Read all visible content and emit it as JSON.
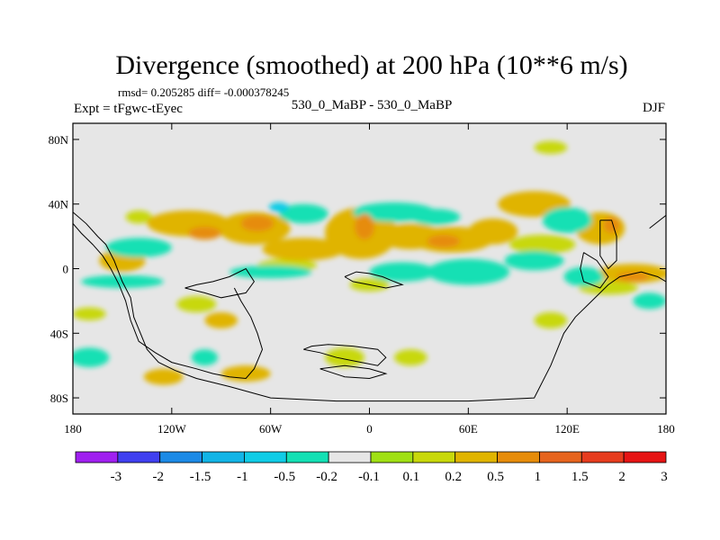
{
  "chart_data": {
    "type": "heatmap",
    "title": "Divergence (smoothed) at 200 hPa (10**6 m/s)",
    "stats": "rmsd= 0.205285 diff= -0.000378245",
    "left_label": "Expt = tFgwc-tEyec",
    "center_label": "530_0_MaBP - 530_0_MaBP",
    "right_label": "DJF",
    "xlim": [
      -180,
      180
    ],
    "ylim": [
      -90,
      90
    ],
    "x_ticks": [
      {
        "value": -180,
        "label": "180"
      },
      {
        "value": -120,
        "label": "120W"
      },
      {
        "value": -60,
        "label": "60W"
      },
      {
        "value": 0,
        "label": "0"
      },
      {
        "value": 60,
        "label": "60E"
      },
      {
        "value": 120,
        "label": "120E"
      },
      {
        "value": 180,
        "label": "180"
      }
    ],
    "y_ticks": [
      {
        "value": 80,
        "label": "80N"
      },
      {
        "value": 40,
        "label": "40N"
      },
      {
        "value": 0,
        "label": "0"
      },
      {
        "value": -40,
        "label": "40S"
      },
      {
        "value": -80,
        "label": "80S"
      }
    ],
    "colorbar": {
      "colors": [
        "#a020f0",
        "#4040f0",
        "#1c8ae6",
        "#12b4e6",
        "#10cce6",
        "#14e0b4",
        "#e6e6e6",
        "#a0e014",
        "#c8d80a",
        "#e0b400",
        "#e68c0a",
        "#e6641e",
        "#e63c1e",
        "#e61414"
      ],
      "labels": [
        "-3",
        "-2",
        "-1.5",
        "-1",
        "-0.5",
        "-0.2",
        "-0.1",
        "0.1",
        "0.2",
        "0.5",
        "1",
        "1.5",
        "2",
        "3"
      ]
    },
    "fields": [
      {
        "lon": -150,
        "lat": 5,
        "rx": 14,
        "ry": 7,
        "value": 0.5
      },
      {
        "lon": -140,
        "lat": 32,
        "rx": 8,
        "ry": 4,
        "value": 0.2
      },
      {
        "lon": -110,
        "lat": 28,
        "rx": 25,
        "ry": 8,
        "value": 0.5
      },
      {
        "lon": -100,
        "lat": 22,
        "rx": 10,
        "ry": 4,
        "value": 1
      },
      {
        "lon": -70,
        "lat": 25,
        "rx": 22,
        "ry": 10,
        "value": 0.5
      },
      {
        "lon": -68,
        "lat": 28,
        "rx": 10,
        "ry": 5,
        "value": 1
      },
      {
        "lon": -40,
        "lat": 12,
        "rx": 25,
        "ry": 7,
        "value": 0.5
      },
      {
        "lon": -50,
        "lat": 2,
        "rx": 18,
        "ry": 4,
        "value": 0.2
      },
      {
        "lon": -5,
        "lat": 22,
        "rx": 22,
        "ry": 16,
        "value": 0.5
      },
      {
        "lon": -3,
        "lat": 26,
        "rx": 6,
        "ry": 8,
        "value": 1
      },
      {
        "lon": 25,
        "lat": 20,
        "rx": 20,
        "ry": 8,
        "value": 0.5
      },
      {
        "lon": 50,
        "lat": 18,
        "rx": 25,
        "ry": 8,
        "value": 0.5
      },
      {
        "lon": 45,
        "lat": 17,
        "rx": 10,
        "ry": 4,
        "value": 1
      },
      {
        "lon": 75,
        "lat": 23,
        "rx": 15,
        "ry": 8,
        "value": 0.5
      },
      {
        "lon": 100,
        "lat": 40,
        "rx": 22,
        "ry": 8,
        "value": 0.5
      },
      {
        "lon": 105,
        "lat": 15,
        "rx": 20,
        "ry": 6,
        "value": 0.2
      },
      {
        "lon": 140,
        "lat": 25,
        "rx": 15,
        "ry": 10,
        "value": 0.5
      },
      {
        "lon": 147,
        "lat": 27,
        "rx": 5,
        "ry": 5,
        "value": 1
      },
      {
        "lon": 160,
        "lat": -3,
        "rx": 22,
        "ry": 6,
        "value": 0.5
      },
      {
        "lon": 160,
        "lat": -5,
        "rx": 10,
        "ry": 3,
        "value": 1
      },
      {
        "lon": 145,
        "lat": -12,
        "rx": 18,
        "ry": 4,
        "value": 0.2
      },
      {
        "lon": 110,
        "lat": -32,
        "rx": 10,
        "ry": 5,
        "value": 0.2
      },
      {
        "lon": -105,
        "lat": -22,
        "rx": 12,
        "ry": 5,
        "value": 0.2
      },
      {
        "lon": -90,
        "lat": -32,
        "rx": 10,
        "ry": 5,
        "value": 0.5
      },
      {
        "lon": -75,
        "lat": -65,
        "rx": 15,
        "ry": 5,
        "value": 0.5
      },
      {
        "lon": -125,
        "lat": -67,
        "rx": 12,
        "ry": 5,
        "value": 0.5
      },
      {
        "lon": -15,
        "lat": -55,
        "rx": 12,
        "ry": 6,
        "value": 0.2
      },
      {
        "lon": 25,
        "lat": -55,
        "rx": 10,
        "ry": 5,
        "value": 0.2
      },
      {
        "lon": -170,
        "lat": -28,
        "rx": 10,
        "ry": 4,
        "value": 0.2
      },
      {
        "lon": 0,
        "lat": -10,
        "rx": 12,
        "ry": 4,
        "value": 0.2
      },
      {
        "lon": 110,
        "lat": 75,
        "rx": 10,
        "ry": 4,
        "value": 0.2
      },
      {
        "lon": -140,
        "lat": 13,
        "rx": 20,
        "ry": 6,
        "value": -0.5
      },
      {
        "lon": -150,
        "lat": -8,
        "rx": 25,
        "ry": 4,
        "value": -0.5
      },
      {
        "lon": -60,
        "lat": -2,
        "rx": 25,
        "ry": 4,
        "value": -0.5
      },
      {
        "lon": -40,
        "lat": 34,
        "rx": 15,
        "ry": 6,
        "value": -0.5
      },
      {
        "lon": -55,
        "lat": 38,
        "rx": 6,
        "ry": 3,
        "value": -1
      },
      {
        "lon": 15,
        "lat": 35,
        "rx": 25,
        "ry": 6,
        "value": -0.5
      },
      {
        "lon": 40,
        "lat": 32,
        "rx": 15,
        "ry": 5,
        "value": -0.5
      },
      {
        "lon": 20,
        "lat": -2,
        "rx": 20,
        "ry": 6,
        "value": -0.5
      },
      {
        "lon": 60,
        "lat": -2,
        "rx": 25,
        "ry": 8,
        "value": -0.5
      },
      {
        "lon": 100,
        "lat": 5,
        "rx": 18,
        "ry": 6,
        "value": -0.5
      },
      {
        "lon": 130,
        "lat": -5,
        "rx": 12,
        "ry": 6,
        "value": -0.5
      },
      {
        "lon": 120,
        "lat": 30,
        "rx": 15,
        "ry": 8,
        "value": -0.5
      },
      {
        "lon": -170,
        "lat": -55,
        "rx": 12,
        "ry": 6,
        "value": -0.5
      },
      {
        "lon": 170,
        "lat": -20,
        "rx": 10,
        "ry": 5,
        "value": -0.5
      },
      {
        "lon": -100,
        "lat": -55,
        "rx": 8,
        "ry": 5,
        "value": -0.5
      },
      {
        "lon": 145,
        "lat": -60,
        "rx": 15,
        "ry": 5,
        "value": -0.2
      },
      {
        "lon": 80,
        "lat": -45,
        "rx": 20,
        "ry": 5,
        "value": -0.2
      },
      {
        "lon": -20,
        "lat": 60,
        "rx": 15,
        "ry": 4,
        "value": -0.2
      },
      {
        "lon": 35,
        "lat": 70,
        "rx": 20,
        "ry": 4,
        "value": -0.2
      }
    ],
    "coastlines": [
      [
        [
          -180,
          35
        ],
        [
          -172,
          28
        ],
        [
          -165,
          20
        ],
        [
          -160,
          15
        ],
        [
          -155,
          5
        ],
        [
          -150,
          -8
        ],
        [
          -145,
          -18
        ],
        [
          -143,
          -30
        ],
        [
          -135,
          -50
        ],
        [
          -128,
          -58
        ],
        [
          -118,
          -63
        ],
        [
          -105,
          -68
        ],
        [
          -85,
          -73
        ],
        [
          -60,
          -80
        ],
        [
          -20,
          -82
        ],
        [
          20,
          -82
        ],
        [
          60,
          -82
        ],
        [
          100,
          -80
        ],
        [
          110,
          -60
        ],
        [
          118,
          -40
        ],
        [
          125,
          -30
        ],
        [
          135,
          -20
        ],
        [
          145,
          -10
        ],
        [
          152,
          -5
        ],
        [
          165,
          -2
        ],
        [
          175,
          -5
        ],
        [
          180,
          -8
        ]
      ],
      [
        [
          -180,
          28
        ],
        [
          -175,
          22
        ],
        [
          -168,
          15
        ],
        [
          -162,
          8
        ],
        [
          -157,
          0
        ],
        [
          -152,
          -10
        ],
        [
          -148,
          -20
        ],
        [
          -145,
          -32
        ],
        [
          -140,
          -45
        ],
        [
          -130,
          -52
        ],
        [
          -120,
          -58
        ],
        [
          -105,
          -62
        ],
        [
          -95,
          -65
        ],
        [
          -85,
          -67
        ],
        [
          -75,
          -68
        ],
        [
          -70,
          -62
        ],
        [
          -65,
          -50
        ],
        [
          -68,
          -40
        ],
        [
          -72,
          -30
        ],
        [
          -78,
          -20
        ],
        [
          -82,
          -12
        ]
      ],
      [
        [
          -112,
          -12
        ],
        [
          -100,
          -15
        ],
        [
          -90,
          -18
        ],
        [
          -75,
          -15
        ],
        [
          -70,
          -8
        ],
        [
          -75,
          0
        ],
        [
          -85,
          -5
        ],
        [
          -95,
          -8
        ],
        [
          -105,
          -10
        ],
        [
          -112,
          -12
        ]
      ],
      [
        [
          -40,
          -50
        ],
        [
          -30,
          -52
        ],
        [
          -20,
          -55
        ],
        [
          -5,
          -58
        ],
        [
          5,
          -60
        ],
        [
          10,
          -55
        ],
        [
          5,
          -50
        ],
        [
          -10,
          -48
        ],
        [
          -25,
          -47
        ],
        [
          -35,
          -48
        ],
        [
          -40,
          -50
        ]
      ],
      [
        [
          -30,
          -62
        ],
        [
          -15,
          -60
        ],
        [
          0,
          -62
        ],
        [
          10,
          -65
        ],
        [
          0,
          -68
        ],
        [
          -15,
          -67
        ],
        [
          -30,
          -62
        ]
      ],
      [
        [
          -15,
          -5
        ],
        [
          -8,
          -2
        ],
        [
          0,
          -3
        ],
        [
          8,
          -5
        ],
        [
          15,
          -8
        ],
        [
          20,
          -10
        ],
        [
          10,
          -12
        ],
        [
          0,
          -10
        ],
        [
          -10,
          -8
        ],
        [
          -15,
          -5
        ]
      ],
      [
        [
          140,
          30
        ],
        [
          147,
          30
        ],
        [
          150,
          20
        ],
        [
          150,
          5
        ],
        [
          145,
          0
        ],
        [
          140,
          8
        ],
        [
          140,
          30
        ]
      ],
      [
        [
          130,
          10
        ],
        [
          138,
          5
        ],
        [
          145,
          -5
        ],
        [
          140,
          -12
        ],
        [
          130,
          -8
        ],
        [
          128,
          0
        ],
        [
          130,
          10
        ]
      ],
      [
        [
          170,
          25
        ],
        [
          180,
          33
        ]
      ]
    ]
  }
}
